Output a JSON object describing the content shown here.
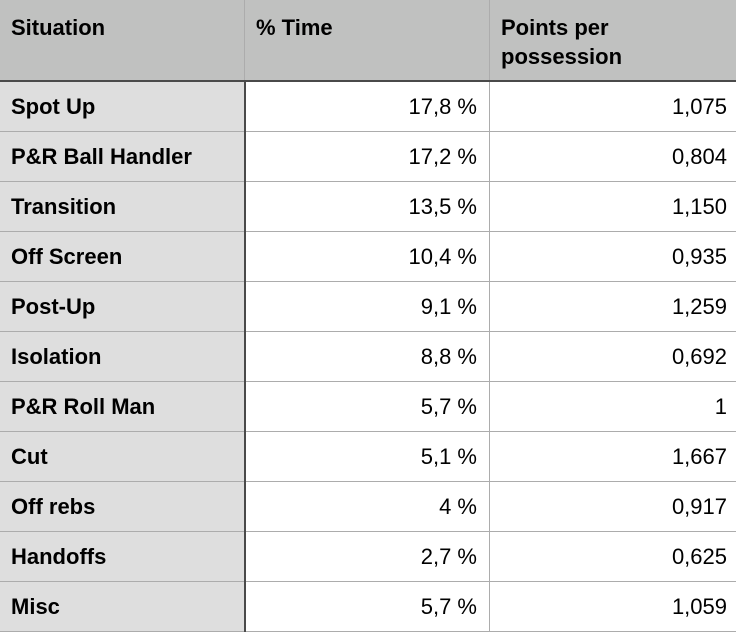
{
  "table": {
    "headers": [
      "Situation",
      "% Time",
      "Points per possession"
    ],
    "rows": [
      [
        "Spot Up",
        "17,8 %",
        "1,075"
      ],
      [
        "P&R Ball Handler",
        "17,2 %",
        "0,804"
      ],
      [
        "Transition",
        "13,5 %",
        "1,150"
      ],
      [
        "Off Screen",
        "10,4 %",
        "0,935"
      ],
      [
        "Post-Up",
        "9,1 %",
        "1,259"
      ],
      [
        "Isolation",
        "8,8 %",
        "0,692"
      ],
      [
        "P&R Roll Man",
        "5,7 %",
        "1"
      ],
      [
        "Cut",
        "5,1 %",
        "1,667"
      ],
      [
        "Off rebs",
        "4 %",
        "0,917"
      ],
      [
        "Handoffs",
        "2,7 %",
        "0,625"
      ],
      [
        "Misc",
        "5,7 %",
        "1,059"
      ]
    ]
  },
  "colors": {
    "header_bg": "#c0c1c0",
    "first_column_bg": "#dedede",
    "grid": "#acacac"
  }
}
